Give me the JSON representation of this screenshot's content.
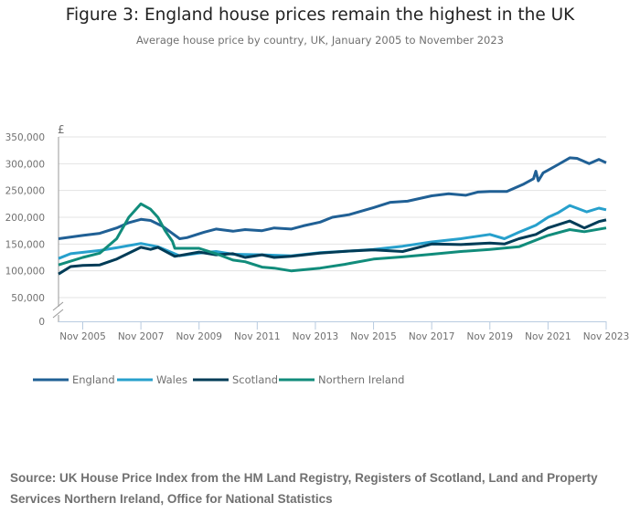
{
  "title": "Figure 3: England house prices remain the highest in the UK",
  "subtitle": "Average house price by country, UK, January 2005 to November 2023",
  "source": "Source: UK House Price Index from the HM Land Registry, Registers of Scotland, Land and Property Services Northern Ireland, Office for National Statistics",
  "chart_data": {
    "type": "line",
    "title": "Figure 3: England house prices remain the highest in the UK",
    "subtitle": "Average house price by country, UK, January 2005 to November 2023",
    "ylabel": "£",
    "xlabel": "",
    "ylim": [
      0,
      350000
    ],
    "xlim": [
      "2005-01",
      "2023-11"
    ],
    "y_ticks": [
      "350,000",
      "300,000",
      "250,000",
      "200,000",
      "150,000",
      "100,000",
      "50,000",
      "0"
    ],
    "y_tick_values": [
      350000,
      300000,
      250000,
      200000,
      150000,
      100000,
      50000,
      0
    ],
    "x_ticks": [
      "Nov 2005",
      "Nov 2007",
      "Nov 2009",
      "Nov 2011",
      "Nov 2013",
      "Nov 2015",
      "Nov 2017",
      "Nov 2019",
      "Nov 2021",
      "Nov 2023"
    ],
    "x_tick_dates": [
      "2005-11",
      "2007-11",
      "2009-11",
      "2011-11",
      "2013-11",
      "2015-11",
      "2017-11",
      "2019-11",
      "2021-11",
      "2023-11"
    ],
    "grid": true,
    "axis_break": true,
    "legend_position": "bottom",
    "series": [
      {
        "name": "England",
        "color": "#206095",
        "points": [
          [
            "2005-01",
            160000
          ],
          [
            "2005-11",
            166000
          ],
          [
            "2006-06",
            170000
          ],
          [
            "2007-01",
            180000
          ],
          [
            "2007-06",
            190000
          ],
          [
            "2007-11",
            196000
          ],
          [
            "2008-03",
            194000
          ],
          [
            "2008-08",
            183000
          ],
          [
            "2009-03",
            160000
          ],
          [
            "2009-06",
            162000
          ],
          [
            "2010-01",
            172000
          ],
          [
            "2010-06",
            178000
          ],
          [
            "2011-01",
            174000
          ],
          [
            "2011-06",
            177000
          ],
          [
            "2012-01",
            175000
          ],
          [
            "2012-06",
            180000
          ],
          [
            "2013-01",
            178000
          ],
          [
            "2013-06",
            184000
          ],
          [
            "2014-01",
            191000
          ],
          [
            "2014-06",
            200000
          ],
          [
            "2015-01",
            205000
          ],
          [
            "2015-11",
            218000
          ],
          [
            "2016-06",
            228000
          ],
          [
            "2017-01",
            230000
          ],
          [
            "2017-11",
            240000
          ],
          [
            "2018-06",
            244000
          ],
          [
            "2019-01",
            241000
          ],
          [
            "2019-06",
            247000
          ],
          [
            "2019-11",
            248000
          ],
          [
            "2020-06",
            248000
          ],
          [
            "2021-01",
            262000
          ],
          [
            "2021-05",
            272000
          ],
          [
            "2021-06",
            286000
          ],
          [
            "2021-07",
            268000
          ],
          [
            "2021-09",
            283000
          ],
          [
            "2021-11",
            288000
          ],
          [
            "2022-03",
            298000
          ],
          [
            "2022-08",
            311000
          ],
          [
            "2022-11",
            310000
          ],
          [
            "2023-04",
            300000
          ],
          [
            "2023-08",
            308000
          ],
          [
            "2023-11",
            302000
          ]
        ]
      },
      {
        "name": "Wales",
        "color": "#27a0cc",
        "points": [
          [
            "2005-01",
            123000
          ],
          [
            "2005-06",
            132000
          ],
          [
            "2006-06",
            138000
          ],
          [
            "2007-01",
            143000
          ],
          [
            "2007-11",
            151000
          ],
          [
            "2008-06",
            145000
          ],
          [
            "2009-03",
            128000
          ],
          [
            "2009-11",
            133000
          ],
          [
            "2010-06",
            136000
          ],
          [
            "2011-01",
            131000
          ],
          [
            "2012-01",
            130000
          ],
          [
            "2013-01",
            128000
          ],
          [
            "2014-01",
            134000
          ],
          [
            "2015-01",
            137000
          ],
          [
            "2015-11",
            140000
          ],
          [
            "2016-11",
            146000
          ],
          [
            "2017-11",
            154000
          ],
          [
            "2018-11",
            160000
          ],
          [
            "2019-11",
            168000
          ],
          [
            "2020-05",
            160000
          ],
          [
            "2020-11",
            172000
          ],
          [
            "2021-06",
            185000
          ],
          [
            "2021-11",
            200000
          ],
          [
            "2022-03",
            208000
          ],
          [
            "2022-08",
            222000
          ],
          [
            "2023-03",
            210000
          ],
          [
            "2023-08",
            217000
          ],
          [
            "2023-11",
            214000
          ]
        ]
      },
      {
        "name": "Scotland",
        "color": "#003c57",
        "points": [
          [
            "2005-01",
            94000
          ],
          [
            "2005-06",
            108000
          ],
          [
            "2005-11",
            110000
          ],
          [
            "2006-06",
            111000
          ],
          [
            "2007-01",
            122000
          ],
          [
            "2007-11",
            144000
          ],
          [
            "2008-03",
            140000
          ],
          [
            "2008-06",
            144000
          ],
          [
            "2009-01",
            127000
          ],
          [
            "2009-11",
            135000
          ],
          [
            "2010-06",
            130000
          ],
          [
            "2011-01",
            132000
          ],
          [
            "2011-06",
            125000
          ],
          [
            "2012-01",
            130000
          ],
          [
            "2012-06",
            125000
          ],
          [
            "2013-01",
            127000
          ],
          [
            "2014-01",
            133000
          ],
          [
            "2015-01",
            137000
          ],
          [
            "2015-11",
            139000
          ],
          [
            "2016-11",
            136000
          ],
          [
            "2017-11",
            150000
          ],
          [
            "2018-11",
            149000
          ],
          [
            "2019-11",
            152000
          ],
          [
            "2020-05",
            150000
          ],
          [
            "2020-11",
            160000
          ],
          [
            "2021-06",
            168000
          ],
          [
            "2021-11",
            180000
          ],
          [
            "2022-08",
            193000
          ],
          [
            "2023-02",
            180000
          ],
          [
            "2023-08",
            192000
          ],
          [
            "2023-11",
            195000
          ]
        ]
      },
      {
        "name": "Northern Ireland",
        "color": "#118c7b",
        "points": [
          [
            "2005-01",
            111000
          ],
          [
            "2005-11",
            125000
          ],
          [
            "2006-06",
            133000
          ],
          [
            "2007-01",
            160000
          ],
          [
            "2007-06",
            200000
          ],
          [
            "2007-11",
            225000
          ],
          [
            "2008-03",
            215000
          ],
          [
            "2008-06",
            200000
          ],
          [
            "2008-09",
            175000
          ],
          [
            "2008-12",
            155000
          ],
          [
            "2009-01",
            142000
          ],
          [
            "2009-11",
            142000
          ],
          [
            "2010-06",
            132000
          ],
          [
            "2011-01",
            120000
          ],
          [
            "2011-06",
            117000
          ],
          [
            "2012-01",
            107000
          ],
          [
            "2012-06",
            105000
          ],
          [
            "2013-01",
            100000
          ],
          [
            "2013-06",
            102000
          ],
          [
            "2014-01",
            105000
          ],
          [
            "2014-11",
            112000
          ],
          [
            "2015-11",
            122000
          ],
          [
            "2016-11",
            126000
          ],
          [
            "2017-11",
            131000
          ],
          [
            "2018-11",
            136000
          ],
          [
            "2019-11",
            140000
          ],
          [
            "2020-11",
            145000
          ],
          [
            "2021-11",
            166000
          ],
          [
            "2022-08",
            177000
          ],
          [
            "2023-02",
            173000
          ],
          [
            "2023-11",
            180000
          ]
        ]
      }
    ]
  }
}
